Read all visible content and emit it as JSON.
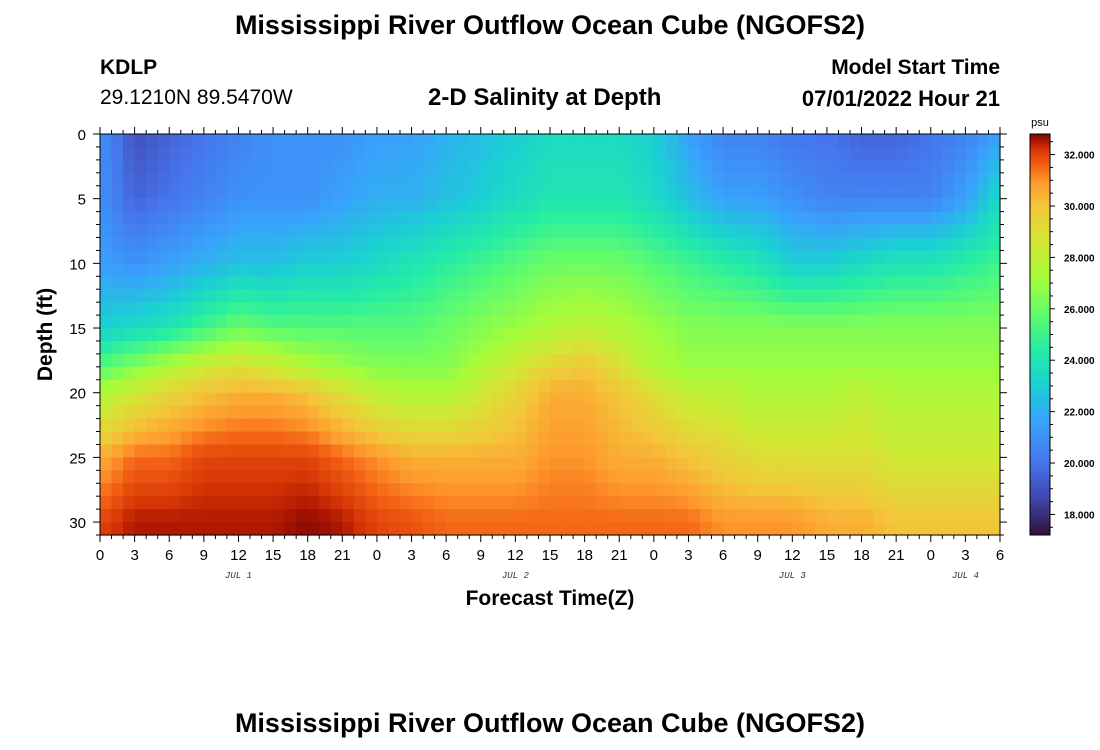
{
  "title": "Mississippi River Outflow Ocean Cube (NGOFS2)",
  "footer_title": "Mississippi River Outflow Ocean Cube (NGOFS2)",
  "station": {
    "id": "KDLP",
    "coords": "29.1210N  89.5470W"
  },
  "plot_title": "2-D Salinity at Depth",
  "model_start": {
    "label": "Model Start Time",
    "value": "07/01/2022 Hour 21"
  },
  "chart_data": {
    "type": "heatmap",
    "title": "2-D Salinity at Depth",
    "xlabel": "Forecast Time(Z)",
    "ylabel": "Depth (ft)",
    "x_range_hours": [
      0,
      78
    ],
    "y_range_ft": [
      0,
      31
    ],
    "x_ticks": [
      "0",
      "3",
      "6",
      "9",
      "12",
      "15",
      "18",
      "21",
      "0",
      "3",
      "6",
      "9",
      "12",
      "15",
      "18",
      "21",
      "0",
      "3",
      "6",
      "9",
      "12",
      "15",
      "18",
      "21",
      "0",
      "3",
      "6"
    ],
    "y_ticks": [
      "0",
      "5",
      "10",
      "15",
      "20",
      "25",
      "30"
    ],
    "date_labels": [
      {
        "label": "JUL 1",
        "hour": 12
      },
      {
        "label": "JUL 2",
        "hour": 36
      },
      {
        "label": "JUL 3",
        "hour": 60
      },
      {
        "label": "JUL 4",
        "hour": 75
      }
    ],
    "colorbar": {
      "unit": "psu",
      "min": 17.2,
      "max": 32.8,
      "ticks": [
        "32.000",
        "30.000",
        "28.000",
        "26.000",
        "24.000",
        "22.000",
        "20.000",
        "18.000"
      ],
      "tick_values": [
        32,
        30,
        28,
        26,
        24,
        22,
        20,
        18
      ]
    },
    "profile_hours": [
      0,
      3,
      6,
      9,
      12,
      15,
      18,
      21,
      24,
      27,
      30,
      33,
      36,
      39,
      42,
      45,
      48,
      51,
      54,
      57,
      60,
      63,
      66,
      69,
      72,
      75,
      78
    ],
    "profile_depths_ft": [
      0,
      5,
      10,
      15,
      18,
      20,
      25,
      30
    ],
    "salinity_psu": [
      [
        21.0,
        21.0,
        21.5,
        23.0,
        25.5,
        27.5,
        30.5,
        32.0
      ],
      [
        19.0,
        19.5,
        21.0,
        23.5,
        26.5,
        28.5,
        31.5,
        32.5
      ],
      [
        19.5,
        20.0,
        21.5,
        24.0,
        27.5,
        29.5,
        31.5,
        32.5
      ],
      [
        20.0,
        20.5,
        22.0,
        25.0,
        28.5,
        30.0,
        32.0,
        32.5
      ],
      [
        20.5,
        21.0,
        22.5,
        26.0,
        29.0,
        30.5,
        32.0,
        32.5
      ],
      [
        21.0,
        21.0,
        22.5,
        25.5,
        28.5,
        30.5,
        32.0,
        32.5
      ],
      [
        21.0,
        21.0,
        23.0,
        25.5,
        27.5,
        30.0,
        32.0,
        32.7
      ],
      [
        21.0,
        21.5,
        23.0,
        25.5,
        27.0,
        29.0,
        31.5,
        32.5
      ],
      [
        21.5,
        22.0,
        23.5,
        25.5,
        26.5,
        28.0,
        31.0,
        32.0
      ],
      [
        21.5,
        22.0,
        24.0,
        25.5,
        26.5,
        27.5,
        30.5,
        31.8
      ],
      [
        22.0,
        22.5,
        24.5,
        26.0,
        26.5,
        27.5,
        30.5,
        31.5
      ],
      [
        22.5,
        23.0,
        25.0,
        26.5,
        27.5,
        28.5,
        30.5,
        31.5
      ],
      [
        23.0,
        23.5,
        25.5,
        27.0,
        28.5,
        29.5,
        30.5,
        31.5
      ],
      [
        23.5,
        24.0,
        26.0,
        27.5,
        29.5,
        30.5,
        31.0,
        31.5
      ],
      [
        23.5,
        24.0,
        26.0,
        28.0,
        30.0,
        30.5,
        31.0,
        31.5
      ],
      [
        23.5,
        24.0,
        26.0,
        27.5,
        29.0,
        30.0,
        30.5,
        31.5
      ],
      [
        23.0,
        23.5,
        25.5,
        27.0,
        27.5,
        29.0,
        30.5,
        31.5
      ],
      [
        21.5,
        22.5,
        25.0,
        26.5,
        27.0,
        28.0,
        30.0,
        31.5
      ],
      [
        20.5,
        21.5,
        24.5,
        26.5,
        27.0,
        28.0,
        29.5,
        31.0
      ],
      [
        20.5,
        21.5,
        24.0,
        26.5,
        27.0,
        27.5,
        29.0,
        31.0
      ],
      [
        20.0,
        21.0,
        23.0,
        26.5,
        27.0,
        27.5,
        29.0,
        31.0
      ],
      [
        20.0,
        20.5,
        23.0,
        26.5,
        27.0,
        27.5,
        29.0,
        30.5
      ],
      [
        19.5,
        20.5,
        23.5,
        26.5,
        27.0,
        28.0,
        29.0,
        30.5
      ],
      [
        19.5,
        20.5,
        24.0,
        26.5,
        27.0,
        27.5,
        28.5,
        30.0
      ],
      [
        20.0,
        20.5,
        24.0,
        26.5,
        27.0,
        27.5,
        28.5,
        30.0
      ],
      [
        20.5,
        21.5,
        24.5,
        26.5,
        27.0,
        27.5,
        28.5,
        30.0
      ],
      [
        21.5,
        23.5,
        25.0,
        26.5,
        27.0,
        27.5,
        28.5,
        30.0
      ]
    ]
  }
}
